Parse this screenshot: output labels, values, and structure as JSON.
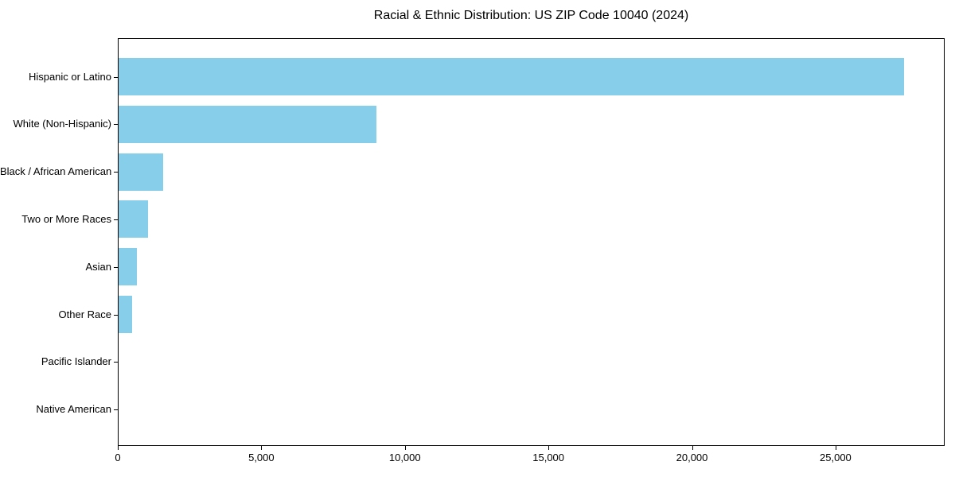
{
  "chart_data": {
    "type": "bar",
    "orientation": "horizontal",
    "title": "Racial & Ethnic Distribution: US ZIP Code 10040 (2024)",
    "categories": [
      "Hispanic or Latino",
      "White (Non-Hispanic)",
      "Black / African American",
      "Two or More Races",
      "Asian",
      "Other Race",
      "Pacific Islander",
      "Native American"
    ],
    "values": [
      27400,
      9000,
      1580,
      1040,
      665,
      490,
      0,
      0
    ],
    "xlabel": "",
    "ylabel": "",
    "xlim": [
      0,
      28800
    ],
    "xticks": [
      0,
      5000,
      10000,
      15000,
      20000,
      25000
    ],
    "xtick_labels": [
      "0",
      "5,000",
      "10,000",
      "15,000",
      "20,000",
      "25,000"
    ],
    "bar_color": "#87CEEB",
    "grid": false,
    "legend": null,
    "background_color": "#ffffff",
    "spine_color": "#000000"
  }
}
